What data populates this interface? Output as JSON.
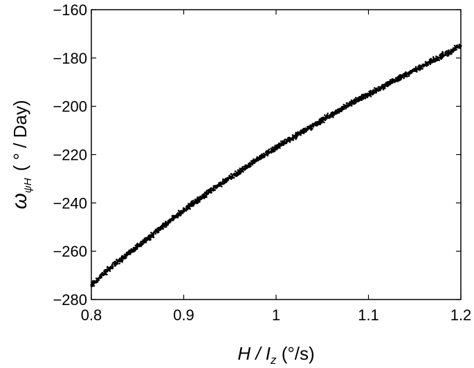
{
  "chart_data": {
    "type": "scatter",
    "title": "",
    "x_tick_labels": [
      "0.8",
      "0.9",
      "1",
      "1.1",
      "1.2"
    ],
    "y_tick_labels": [
      "−160",
      "−180",
      "−200",
      "−220",
      "−240",
      "−260",
      "−280"
    ],
    "x_ticks": [
      0.8,
      0.9,
      1.0,
      1.1,
      1.2
    ],
    "y_ticks": [
      -160,
      -180,
      -200,
      -220,
      -240,
      -260,
      -280
    ],
    "xlim": [
      0.8,
      1.2
    ],
    "ylim": [
      -280,
      -160
    ],
    "grid": false,
    "xlabel": {
      "main": "H / I",
      "sub": "z",
      "unit": " (°/s)"
    },
    "ylabel": {
      "main": "ω",
      "sub": "ψH",
      "unit": "( ° / Day)"
    },
    "marker_color": "#000000",
    "series": [
      {
        "x": [
          0.8,
          0.82,
          0.84,
          0.86,
          0.88,
          0.9,
          0.92,
          0.94,
          0.96,
          0.98,
          1.0,
          1.02,
          1.04,
          1.06,
          1.08,
          1.1,
          1.12,
          1.14,
          1.16,
          1.18,
          1.2
        ],
        "y": [
          -274,
          -267,
          -261,
          -255,
          -249,
          -243,
          -237.5,
          -232,
          -227,
          -222,
          -217,
          -212.5,
          -208,
          -203.5,
          -199,
          -195,
          -191,
          -187,
          -183,
          -179,
          -175
        ]
      }
    ]
  }
}
